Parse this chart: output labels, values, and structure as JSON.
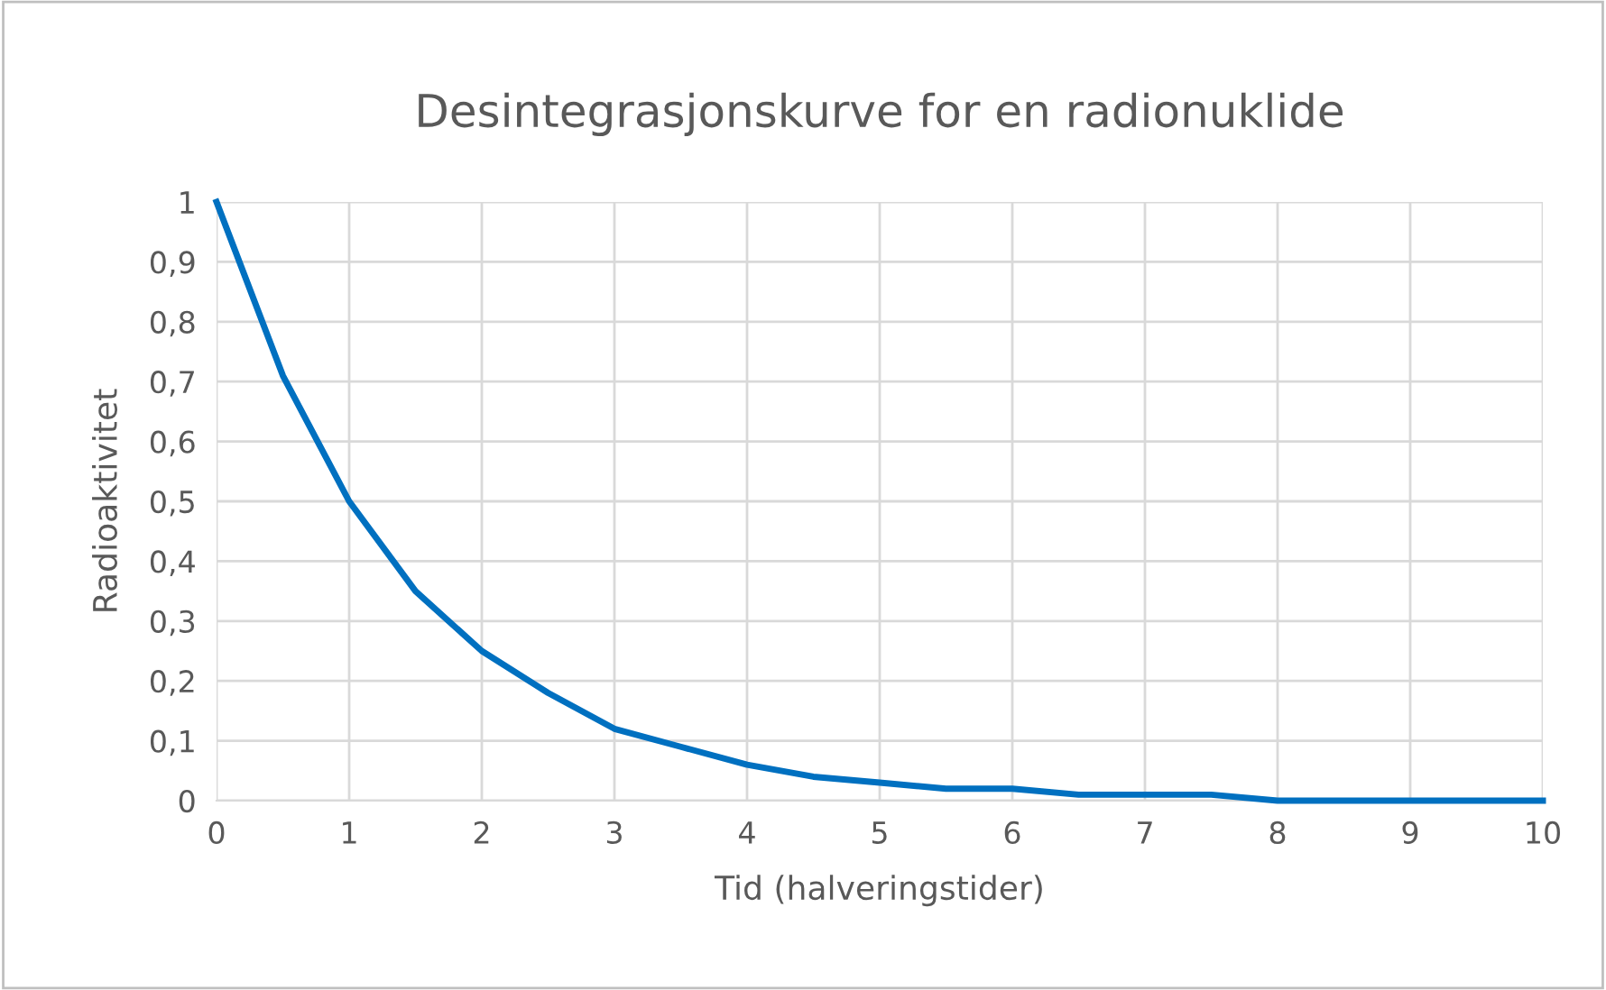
{
  "chart_data": {
    "type": "line",
    "title": "Desintegrasjonskurve for en radionuklide",
    "xlabel": "Tid (halveringstider)",
    "ylabel": "Radioaktivitet",
    "series": [
      {
        "color": "#0070c0",
        "x": [
          0,
          0.5,
          1,
          1.5,
          2,
          2.5,
          3,
          3.5,
          4,
          4.5,
          5,
          5.5,
          6,
          6.5,
          7,
          7.5,
          8,
          8.5,
          9,
          9.5,
          10
        ],
        "values": [
          1,
          0.71,
          0.5,
          0.35,
          0.25,
          0.18,
          0.12,
          0.09,
          0.06,
          0.04,
          0.03,
          0.02,
          0.02,
          0.01,
          0.01,
          0.01,
          0,
          0,
          0,
          0,
          0
        ]
      }
    ],
    "xlim": [
      0,
      10
    ],
    "xticks": [
      0,
      1,
      2,
      3,
      4,
      5,
      6,
      7,
      8,
      9,
      10
    ],
    "ylim": [
      0,
      1
    ],
    "yticks": [
      0,
      {
        "value": 0.1,
        "label": "0,1"
      },
      {
        "value": 0.2,
        "label": "0,2"
      },
      {
        "value": 0.3,
        "label": "0,3"
      },
      {
        "value": 0.4,
        "label": "0,4"
      },
      {
        "value": 0.5,
        "label": "0,5"
      },
      {
        "value": 0.6,
        "label": "0,6"
      },
      {
        "value": 0.7,
        "label": "0,7"
      },
      {
        "value": 0.8,
        "label": "0,8"
      },
      {
        "value": 0.9,
        "label": "0,9"
      },
      1
    ],
    "grid": true,
    "marker": "none",
    "line_style": "solid"
  }
}
